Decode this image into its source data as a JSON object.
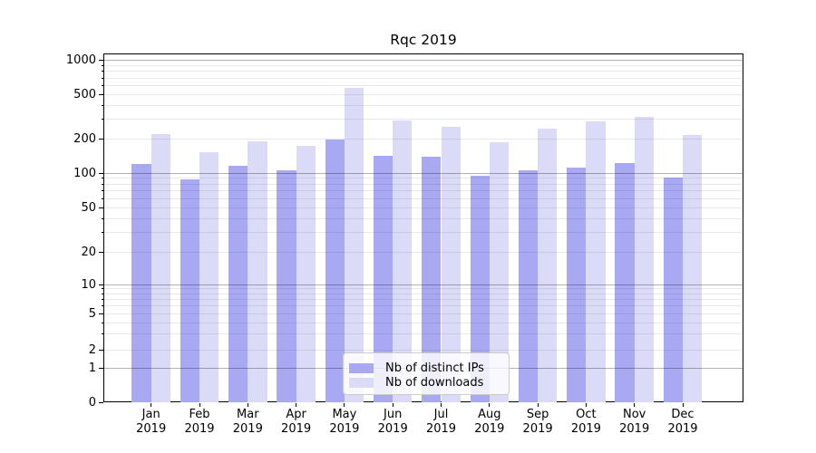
{
  "figure": {
    "title": "Rqc 2019"
  },
  "chart_data": {
    "type": "bar",
    "title": "Rqc 2019",
    "categories": [
      "Jan\n2019",
      "Feb\n2019",
      "Mar\n2019",
      "Apr\n2019",
      "May\n2019",
      "Jun\n2019",
      "Jul\n2019",
      "Aug\n2019",
      "Sep\n2019",
      "Oct\n2019",
      "Nov\n2019",
      "Dec\n2019"
    ],
    "series": [
      {
        "name": "Nb of distinct IPs",
        "color": "#a9a9f3",
        "values": [
          120,
          88,
          115,
          105,
          198,
          142,
          140,
          95,
          106,
          112,
          122,
          92
        ]
      },
      {
        "name": "Nb of downloads",
        "color": "#dbdbf8",
        "values": [
          222,
          153,
          189,
          174,
          570,
          291,
          256,
          186,
          246,
          285,
          315,
          218
        ]
      }
    ],
    "xlabel": "",
    "ylabel": "",
    "yscale": "symlog",
    "yticks": [
      0,
      1,
      2,
      5,
      10,
      20,
      50,
      100,
      200,
      500,
      1000
    ],
    "ytick_labels": [
      "0",
      "1",
      "2",
      "5",
      "10",
      "20",
      "50",
      "100",
      "200",
      "500",
      "1000"
    ],
    "ylim": [
      0,
      1150
    ],
    "grid": "horizontal major+minor, drawn above bars",
    "legend": {
      "position": "lower center",
      "entries": [
        "Nb of distinct IPs",
        "Nb of downloads"
      ]
    },
    "colors": {
      "major_grid": "rgba(0,0,0,0.30)",
      "minor_grid": "rgba(0,0,0,0.085)",
      "spine": "#000000",
      "background": "#ffffff"
    }
  }
}
